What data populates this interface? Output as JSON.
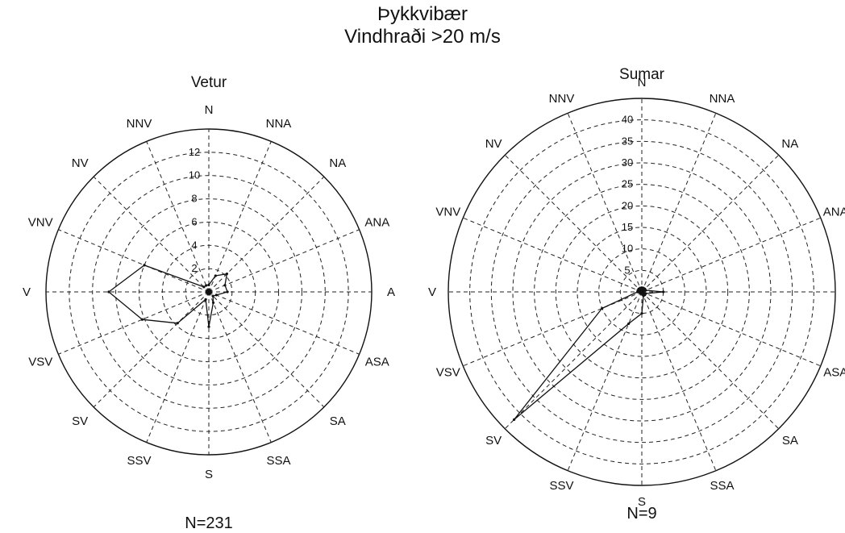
{
  "figure": {
    "title_line1": "Þykkvibær",
    "title_line2": "Vindhraði >20 m/s"
  },
  "chart_data": [
    {
      "type": "radar",
      "title": "Vetur",
      "note": "N=231",
      "directions": [
        "N",
        "NNA",
        "NA",
        "ANA",
        "A",
        "ASA",
        "SA",
        "SSA",
        "S",
        "SSV",
        "SV",
        "VSV",
        "V",
        "VNV",
        "NV",
        "NNV"
      ],
      "r_ticks": [
        2,
        4,
        6,
        8,
        10,
        12
      ],
      "r_max": 14,
      "grid": true,
      "series": [
        {
          "values": [
            0.6,
            1.5,
            2.2,
            1.5,
            1.6,
            0.7,
            0.5,
            1.0,
            3.0,
            0.7,
            3.8,
            6.2,
            8.6,
            6.0,
            0.6,
            0.6
          ]
        }
      ]
    },
    {
      "type": "radar",
      "title": "Sumar",
      "note": "N=9",
      "directions": [
        "N",
        "NNA",
        "NA",
        "ANA",
        "A",
        "ASA",
        "SA",
        "SSA",
        "S",
        "SSV",
        "SV",
        "VSV",
        "V",
        "VNV",
        "NV",
        "NNV"
      ],
      "r_ticks": [
        5,
        10,
        15,
        20,
        25,
        30,
        35,
        40
      ],
      "r_max": 45,
      "grid": true,
      "series": [
        {
          "values": [
            1,
            1,
            1,
            1,
            5,
            1,
            1,
            1,
            5,
            8,
            42,
            10,
            1,
            1,
            1,
            1
          ]
        }
      ]
    }
  ]
}
